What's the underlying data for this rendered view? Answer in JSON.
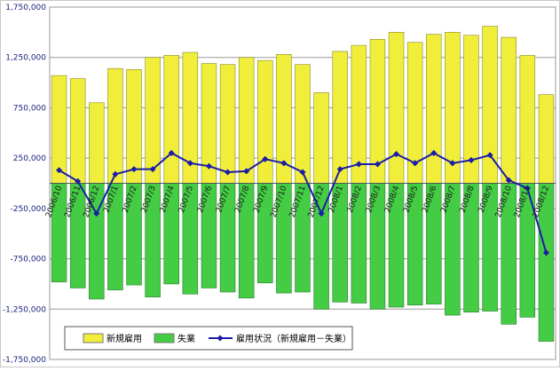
{
  "chart_data": {
    "type": "bar",
    "categories": [
      "2006/10",
      "2006/11",
      "2006/12",
      "2007/1",
      "2007/2",
      "2007/3",
      "2007/4",
      "2007/5",
      "2007/6",
      "2007/7",
      "2007/8",
      "2007/9",
      "2007/10",
      "2007/11",
      "2007/12",
      "2008/1",
      "2008/2",
      "2008/3",
      "2008/4",
      "2008/5",
      "2008/6",
      "2008/7",
      "2008/8",
      "2008/9",
      "2008/10",
      "2008/11",
      "2008/12"
    ],
    "yticks": [
      "1,750,000",
      "1,250,000",
      "750,000",
      "250,000",
      "-250,000",
      "-750,000",
      "-1,250,000",
      "-1,750,000"
    ],
    "ylim": [
      -1750000,
      1750000
    ],
    "grid": true,
    "legend_position": "bottom-left",
    "series": [
      {
        "name": "新規雇用",
        "kind": "bar",
        "color": "#f0ee3a",
        "values": [
          1070000,
          1040000,
          800000,
          1140000,
          1130000,
          1250000,
          1270000,
          1300000,
          1190000,
          1180000,
          1250000,
          1220000,
          1280000,
          1180000,
          900000,
          1310000,
          1370000,
          1430000,
          1500000,
          1400000,
          1480000,
          1500000,
          1470000,
          1560000,
          1450000,
          1270000,
          880000
        ]
      },
      {
        "name": "失業",
        "kind": "bar",
        "color": "#44cc44",
        "values": [
          -980000,
          -1040000,
          -1150000,
          -1060000,
          -1010000,
          -1130000,
          -1000000,
          -1100000,
          -1040000,
          -1080000,
          -1140000,
          -990000,
          -1090000,
          -1080000,
          -1250000,
          -1180000,
          -1190000,
          -1250000,
          -1230000,
          -1210000,
          -1200000,
          -1310000,
          -1280000,
          -1270000,
          -1400000,
          -1330000,
          -1570000
        ]
      },
      {
        "name": "雇用状況（新規雇用－失業）",
        "kind": "line",
        "color": "#1c1ca8",
        "values": [
          130000,
          20000,
          -300000,
          90000,
          140000,
          140000,
          300000,
          200000,
          170000,
          110000,
          120000,
          240000,
          200000,
          110000,
          -300000,
          140000,
          190000,
          190000,
          290000,
          200000,
          300000,
          200000,
          230000,
          280000,
          30000,
          -50000,
          -690000
        ]
      }
    ]
  }
}
